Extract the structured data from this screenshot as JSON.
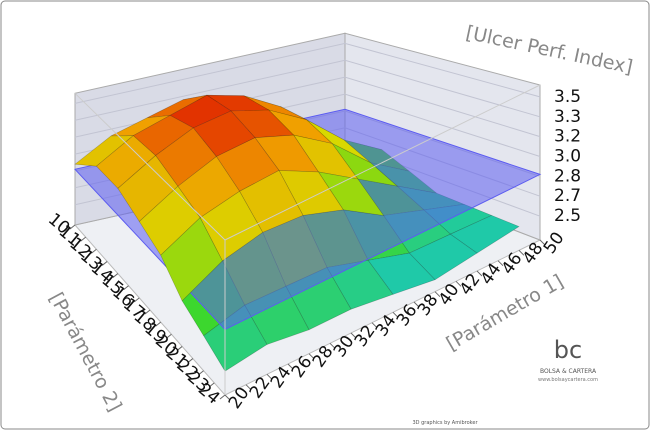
{
  "chart_data": {
    "type": "surface",
    "title": "[Ulcer Perf. Index]",
    "x_label": "[Parámetro 1]",
    "y_label": "[Parámetro 2]",
    "x": [
      20,
      24,
      28,
      32,
      36,
      40,
      44,
      48
    ],
    "y": [
      10,
      12,
      14,
      16,
      18,
      20,
      22,
      24
    ],
    "z": [
      [
        2.9,
        3.1,
        3.2,
        3.3,
        3.2,
        3.0,
        2.7,
        2.6
      ],
      [
        3.1,
        3.3,
        3.4,
        3.5,
        3.4,
        3.2,
        2.8,
        2.6
      ],
      [
        3.1,
        3.3,
        3.45,
        3.5,
        3.4,
        3.2,
        2.9,
        2.7
      ],
      [
        3.0,
        3.2,
        3.35,
        3.4,
        3.3,
        3.1,
        2.8,
        2.6
      ],
      [
        2.9,
        3.1,
        3.2,
        3.25,
        3.1,
        2.9,
        2.7,
        2.5
      ],
      [
        2.7,
        2.9,
        3.0,
        3.0,
        2.9,
        2.7,
        2.6,
        2.5
      ],
      [
        2.6,
        2.7,
        2.7,
        2.7,
        2.6,
        2.5,
        2.5,
        2.5
      ],
      [
        2.5,
        2.55,
        2.5,
        2.5,
        2.45,
        2.4,
        2.45,
        2.5
      ]
    ],
    "xlim": [
      20,
      50
    ],
    "ylim": [
      10,
      24
    ],
    "zlim": [
      2.3,
      3.6
    ],
    "xticks": [
      20,
      22,
      24,
      26,
      28,
      30,
      32,
      34,
      36,
      38,
      40,
      42,
      44,
      46,
      48,
      50
    ],
    "yticks": [
      10,
      11,
      12,
      13,
      14,
      15,
      16,
      17,
      18,
      19,
      20,
      21,
      22,
      23,
      24
    ],
    "zticks": [
      2.5,
      {
        "value": 2.667,
        "label": "2.7"
      },
      {
        "value": 2.833,
        "label": "2.8"
      },
      {
        "value": 3,
        "label": "3.0"
      },
      {
        "value": 3.167,
        "label": "3.2"
      },
      {
        "value": 3.333,
        "label": "3.3"
      },
      3.5
    ],
    "colorscale": [
      "#1fc9a8",
      "#3fd820",
      "#d8d800",
      "#f0a000",
      "#e02000"
    ],
    "plane_level": 2.85,
    "plane_color": "#5c5cf0",
    "credit": "3D graphics by Amibroker",
    "logo": {
      "mark": "bc",
      "name": "BOLSA & CARTERA",
      "url": "www.bolsaycartera.com"
    }
  }
}
